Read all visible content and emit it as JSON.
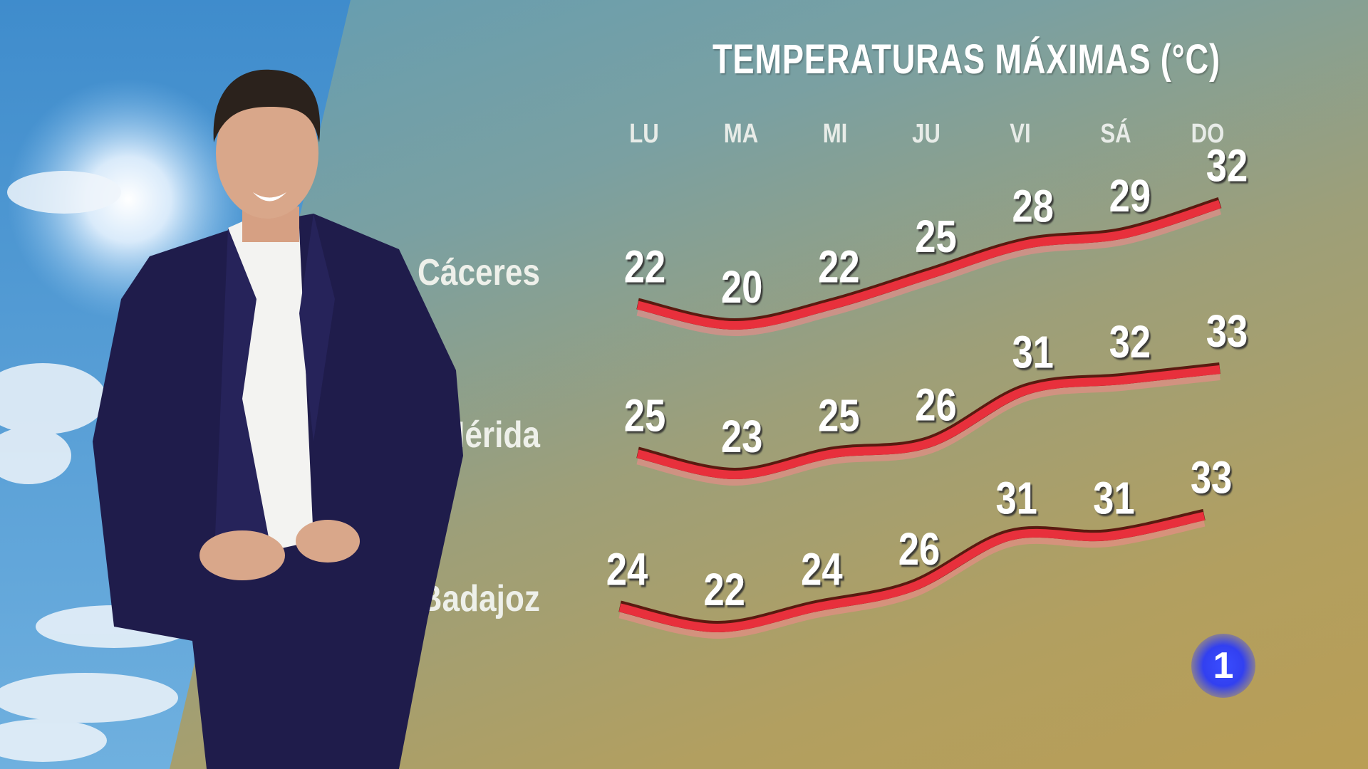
{
  "colors": {
    "tube": "#e8303c",
    "tube_edge": "#5a1a10",
    "text": "#ffffff",
    "sky": "#4f97d0"
  },
  "logo": {
    "text": "1"
  },
  "chart_data": {
    "type": "line",
    "title": "TEMPERATURAS MÁXIMAS (°C)",
    "categories": [
      "LU",
      "MA",
      "MI",
      "JU",
      "VI",
      "SÁ",
      "DO"
    ],
    "series": [
      {
        "name": "Cáceres",
        "values": [
          22,
          20,
          22,
          25,
          28,
          29,
          32
        ]
      },
      {
        "name": "Mérida",
        "values": [
          25,
          23,
          25,
          26,
          31,
          32,
          33
        ]
      },
      {
        "name": "Badajoz",
        "values": [
          24,
          22,
          24,
          26,
          31,
          31,
          33
        ]
      }
    ],
    "data_labels": true,
    "grid": false
  }
}
